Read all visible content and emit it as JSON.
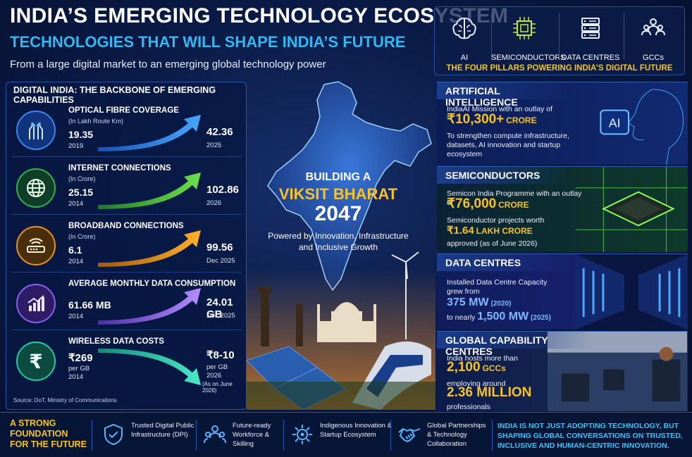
{
  "header": {
    "title": "INDIA’S EMERGING TECHNOLOGY ECOSYSTEM",
    "subtitle": "TECHNOLOGIES THAT WILL SHAPE INDIA’S FUTURE",
    "tagline": "From a large digital market to an emerging global technology power"
  },
  "pillars": {
    "items": [
      {
        "label": "AI",
        "icon": "brain-icon"
      },
      {
        "label": "SEMICONDUCTORS",
        "icon": "chip-icon"
      },
      {
        "label": "DATA CENTRES",
        "icon": "server-icon"
      },
      {
        "label": "GCCs",
        "icon": "people-icon"
      }
    ],
    "caption": "THE FOUR PILLARS POWERING INDIA’S DIGITAL FUTURE"
  },
  "digital_india": {
    "heading": "DIGITAL INDIA: THE BACKBONE OF EMERGING CAPABILITIES",
    "metrics": [
      {
        "name": "OPTICAL FIBRE COVERAGE",
        "unit": "(In Lakh Route Km)",
        "start_value": "19.35",
        "start_year": "2019",
        "end_value": "42.36",
        "end_year": "2025",
        "color": "#2f8cf0",
        "icon": "fibre-icon"
      },
      {
        "name": "INTERNET CONNECTIONS",
        "unit": "(In Crore)",
        "start_value": "25.15",
        "start_year": "2014",
        "end_value": "102.86",
        "end_year": "2026",
        "color": "#3fbf3f",
        "icon": "globe-icon"
      },
      {
        "name": "BROADBAND CONNECTIONS",
        "unit": "(In Crore)",
        "start_value": "6.1",
        "start_year": "2014",
        "end_value": "99.56",
        "end_year": "Dec 2025",
        "color": "#f0a21e",
        "icon": "router-icon"
      },
      {
        "name": "AVERAGE MONTHLY DATA CONSUMPTION",
        "unit": "",
        "start_value": "61.66 MB",
        "start_year": "2014",
        "end_value": "24.01 GB",
        "end_year": "Dec 2025",
        "color": "#8a5ff0",
        "icon": "bar-growth-icon"
      },
      {
        "name": "WIRELESS DATA COSTS",
        "unit": "",
        "start_value": "₹269",
        "start_sub": "per GB",
        "start_year": "2014",
        "end_value": "₹8-10",
        "end_sub": "per GB",
        "end_year": "2026",
        "end_note": "(As on June 2026)",
        "color": "#24c9a8",
        "icon": "rupee-icon"
      }
    ],
    "source": "Source: DoT, Ministry of Communications"
  },
  "center": {
    "line1": "BUILDING A",
    "line2": "VIKSIT BHARAT",
    "line3": "2047",
    "line4": "Powered by Innovation, Infrastructure and Inclusive Growth"
  },
  "sections": {
    "ai": {
      "heading": "ARTIFICIAL INTELLIGENCE",
      "text1": "IndiaAI Mission with an outlay of",
      "amount": "₹10,300+",
      "amount_unit": "CRORE",
      "text2": "To strengthen compute infrastructure, datasets, AI innovation and startup ecosystem",
      "badge": "AI"
    },
    "semi": {
      "heading": "SEMICONDUCTORS",
      "text1": "Semicon India Programme with an outlay of",
      "amount": "₹76,000",
      "amount_unit": "CRORE",
      "text2": "Semiconductor projects worth",
      "amount2": "₹1.64",
      "amount2_unit": "LAKH CRORE",
      "text3": "approved (as of June 2026)"
    },
    "dc": {
      "heading": "DATA CENTRES",
      "text1": "Installed Data Centre Capacity grew from",
      "v1": "375 MW",
      "v1_year": "(2020)",
      "text2": "to nearly",
      "v2": "1,500 MW",
      "v2_year": "(2025)"
    },
    "gcc": {
      "heading": "GLOBAL CAPABILITY CENTRES",
      "text1": "India hosts more than",
      "v1": "2,100",
      "v1_unit": "GCCs",
      "text2": "employing around",
      "v2": "2.36 MILLION",
      "text3": "professionals"
    }
  },
  "footer": {
    "foundation": "A STRONG FOUNDATION FOR THE FUTURE",
    "items": [
      {
        "label": "Trusted Digital Public Infrastructure (DPI)",
        "icon": "shield-check-icon"
      },
      {
        "label": "Future-ready Workforce & Skilling",
        "icon": "workforce-icon"
      },
      {
        "label": "Indigenous Innovation & Startup Ecosystem",
        "icon": "gear-innovation-icon"
      },
      {
        "label": "Global Partnerships & Technology Collaboration",
        "icon": "handshake-icon"
      }
    ],
    "closing": "INDIA IS NOT JUST ADOPTING TECHNOLOGY, BUT SHAPING GLOBAL CONVERSATIONS ON TRUSTED, INCLUSIVE AND HUMAN-CENTRIC INNOVATION."
  }
}
